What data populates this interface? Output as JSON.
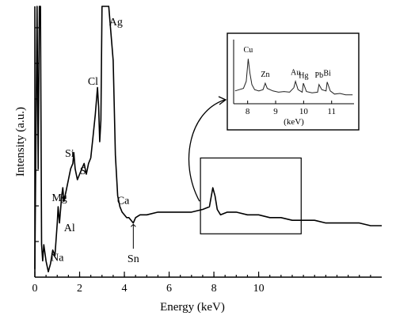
{
  "chart_data": {
    "type": "line",
    "title": "",
    "xlabel": "Energy (keV)",
    "ylabel": "Intensity (a.u.)",
    "xlim": [
      0,
      15.5
    ],
    "ylim": [
      0,
      100
    ],
    "xticks": [
      0,
      2,
      4,
      6,
      8,
      10
    ],
    "xtick_labels": [
      "0",
      "2",
      "4",
      "6",
      "8",
      "10"
    ],
    "series": [
      {
        "x": [
          0.0,
          0.1,
          0.15,
          0.2,
          0.25,
          0.3,
          0.35,
          0.4,
          0.5,
          0.6,
          0.7,
          0.8,
          0.9,
          1.0,
          1.04,
          1.1,
          1.2,
          1.25,
          1.3,
          1.4,
          1.5,
          1.6,
          1.7,
          1.74,
          1.8,
          1.9,
          2.0,
          2.1,
          2.2,
          2.3,
          2.4,
          2.5,
          2.6,
          2.7,
          2.8,
          2.85,
          2.9,
          2.95,
          3.0,
          3.05,
          3.1,
          3.3,
          3.5,
          3.6,
          3.7,
          3.8,
          3.9,
          4.0,
          4.1,
          4.2,
          4.3,
          4.4,
          4.5,
          4.7,
          5.0,
          5.5,
          6.0,
          6.5,
          7.0,
          7.5,
          7.8,
          7.95,
          8.05,
          8.15,
          8.3,
          8.6,
          9.0,
          9.5,
          10.0,
          10.5,
          11.0,
          11.5,
          12.0,
          12.5,
          13.0,
          13.5,
          14.0,
          14.5,
          15.0,
          15.5
        ],
        "values": [
          3,
          100,
          40,
          100,
          100,
          12,
          6,
          12,
          6,
          2,
          5,
          10,
          8,
          20,
          26,
          20,
          30,
          33,
          28,
          32,
          36,
          40,
          42,
          46,
          40,
          36,
          38,
          40,
          42,
          38,
          42,
          44,
          52,
          60,
          70,
          63,
          50,
          58,
          100,
          100,
          100,
          100,
          80,
          45,
          30,
          26,
          24,
          23,
          22,
          22,
          21,
          20,
          22,
          23,
          23,
          24,
          24,
          24,
          24,
          25,
          26,
          33,
          30,
          25,
          23,
          24,
          24,
          23,
          23,
          22,
          22,
          21,
          21,
          21,
          20,
          20,
          20,
          20,
          19,
          19
        ]
      }
    ],
    "peak_labels": [
      "Ag",
      "Cl",
      "Si",
      "S",
      "Mg",
      "Al",
      "Na",
      "Ca",
      "Sn"
    ],
    "inset": {
      "xlim": [
        7.5,
        11.8
      ],
      "xticks": [
        8,
        9,
        10,
        11
      ],
      "xtick_labels": [
        "8",
        "9",
        "10",
        "11"
      ],
      "xlabel": "(keV)",
      "peak_labels": [
        "Cu",
        "Zn",
        "Au",
        "Hg",
        "Pb",
        "Bi"
      ],
      "x": [
        7.55,
        7.7,
        7.85,
        7.95,
        8.02,
        8.08,
        8.15,
        8.25,
        8.4,
        8.55,
        8.63,
        8.7,
        8.9,
        9.1,
        9.3,
        9.5,
        9.65,
        9.71,
        9.8,
        9.95,
        9.99,
        10.1,
        10.3,
        10.5,
        10.55,
        10.65,
        10.8,
        10.84,
        10.95,
        11.1,
        11.3,
        11.5,
        11.75
      ],
      "values": [
        20,
        22,
        24,
        35,
        70,
        48,
        30,
        22,
        20,
        22,
        32,
        24,
        20,
        18,
        19,
        18,
        25,
        35,
        22,
        18,
        32,
        19,
        17,
        18,
        30,
        22,
        20,
        34,
        20,
        15,
        16,
        14,
        14
      ]
    }
  }
}
